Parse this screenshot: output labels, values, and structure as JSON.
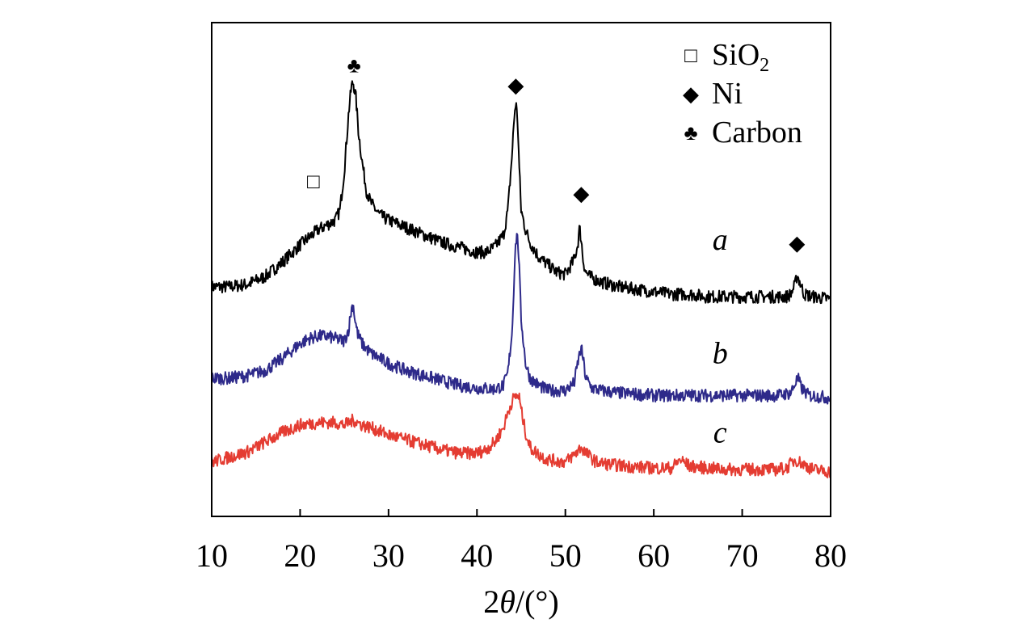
{
  "chart_data": {
    "type": "line",
    "title": "",
    "xlabel": "2θ/(°)",
    "xlabel_parts": {
      "number": "2",
      "theta": "θ",
      "unit": "/(°)"
    },
    "ylabel": "",
    "xlim": [
      10,
      80
    ],
    "ylim": [
      0,
      100
    ],
    "xticks": [
      10,
      20,
      30,
      40,
      50,
      60,
      70,
      80
    ],
    "grid": false,
    "legend_position": "top-right",
    "legend": [
      {
        "name": "SiO2",
        "label_main": "SiO",
        "label_sub": "2",
        "symbol": "□",
        "symbol_name": "open-square-icon"
      },
      {
        "name": "Ni",
        "label_main": "Ni",
        "label_sub": "",
        "symbol": "◆",
        "symbol_name": "filled-diamond-icon"
      },
      {
        "name": "Carbon",
        "label_main": "Carbon",
        "label_sub": "",
        "symbol": "♣",
        "symbol_name": "club-icon"
      }
    ],
    "series": [
      {
        "name": "a",
        "label": "a",
        "color": "#000000",
        "label_x": 67.5,
        "label_y": 54,
        "x": [
          10,
          12,
          14,
          16,
          18,
          20,
          21,
          22,
          23,
          24,
          24.5,
          25,
          25.5,
          25.8,
          26,
          26.3,
          26.6,
          27,
          27.5,
          28,
          29,
          30,
          32,
          34,
          36,
          38,
          40,
          41,
          42,
          43,
          43.5,
          44,
          44.2,
          44.4,
          44.6,
          44.8,
          45,
          45.5,
          46,
          47,
          48,
          49,
          50,
          51,
          51.4,
          51.6,
          51.8,
          52,
          52.3,
          52.8,
          54,
          56,
          58,
          60,
          62,
          64,
          66,
          68,
          70,
          72,
          74,
          75,
          75.5,
          76,
          76.2,
          76.5,
          77,
          78,
          80
        ],
        "y": [
          46.5,
          46.5,
          47,
          48.5,
          51.5,
          55,
          56.5,
          58,
          59,
          60,
          62,
          70,
          82,
          87,
          88,
          85,
          78,
          72,
          66,
          63.5,
          61,
          60,
          58.5,
          57,
          55.5,
          54.5,
          53.5,
          53.5,
          54.5,
          57,
          62,
          74,
          80.5,
          84,
          80,
          70,
          62,
          58,
          55.5,
          52.5,
          51,
          49.5,
          49,
          52,
          55,
          58.5,
          56,
          52,
          49.5,
          48.5,
          47.5,
          46.5,
          46,
          45.5,
          45,
          45,
          44.5,
          44.5,
          44.5,
          44.5,
          44.5,
          44.5,
          45,
          47,
          49,
          47.5,
          45,
          44.5,
          44
        ]
      },
      {
        "name": "b",
        "label": "b",
        "color": "#2e2a8a",
        "label_x": 67.5,
        "label_y": 31,
        "x": [
          10,
          12,
          14,
          16,
          18,
          19,
          20,
          21,
          22,
          23,
          24,
          25,
          25.5,
          25.8,
          26,
          26.2,
          26.5,
          27,
          28,
          30,
          32,
          34,
          36,
          38,
          40,
          42,
          43,
          43.5,
          44,
          44.3,
          44.5,
          44.7,
          45,
          45.5,
          46,
          47,
          48,
          50,
          51,
          51.5,
          51.8,
          52,
          52.3,
          53,
          54,
          56,
          60,
          64,
          68,
          72,
          74,
          75.5,
          76,
          76.3,
          76.7,
          77.5,
          80
        ],
        "y": [
          28,
          28,
          28.5,
          29.5,
          32,
          33.5,
          35,
          36,
          36.5,
          36.5,
          36,
          35.5,
          38,
          42,
          43,
          40,
          37,
          35,
          33,
          31,
          29.5,
          28.5,
          27.5,
          26.5,
          26,
          25.8,
          26.5,
          29,
          38,
          53,
          57.5,
          54,
          40,
          31,
          28,
          26.5,
          25.5,
          25.5,
          27,
          32,
          34,
          32,
          28,
          26,
          25.5,
          25,
          24.5,
          24.5,
          24.5,
          24.5,
          24.5,
          25,
          27,
          28,
          26,
          24.5,
          24
        ]
      },
      {
        "name": "c",
        "label": "c",
        "color": "#e43c32",
        "label_x": 67.5,
        "label_y": 15,
        "x": [
          10,
          12,
          14,
          16,
          18,
          20,
          22,
          24,
          25,
          26,
          27,
          28,
          30,
          32,
          34,
          36,
          38,
          40,
          41,
          42,
          43,
          43.5,
          44,
          44.5,
          44.8,
          45,
          45.5,
          46,
          47,
          48,
          50,
          51,
          51.8,
          52.5,
          53.5,
          55,
          58,
          60,
          62,
          63,
          64,
          66,
          68,
          70,
          72,
          74,
          75,
          76,
          77,
          78,
          80
        ],
        "y": [
          11,
          12,
          13,
          15,
          17,
          18.5,
          19,
          19,
          18.5,
          19.5,
          18.5,
          18,
          16.5,
          15.5,
          14.5,
          13.5,
          12.8,
          12.8,
          13.5,
          15,
          18,
          21,
          23.5,
          24.5,
          24,
          21.5,
          17,
          14,
          12.5,
          11.5,
          11,
          12.5,
          14,
          12.5,
          11,
          10.5,
          10,
          9.8,
          9.8,
          11.5,
          10.2,
          9.8,
          9.5,
          9.5,
          9.5,
          9.5,
          9.8,
          11.5,
          10.5,
          9.5,
          9
        ]
      }
    ],
    "annotations": [
      {
        "name": "carbon-peak-marker",
        "x": 26.1,
        "y_top": 88,
        "symbol": "♣",
        "target": "a"
      },
      {
        "name": "sio2-hump-marker",
        "x": 21.5,
        "y_top": 64.5,
        "symbol": "□",
        "target": "a"
      },
      {
        "name": "ni-peak-marker-44",
        "x": 44.4,
        "y_top": 84,
        "symbol": "◆",
        "target": "a"
      },
      {
        "name": "ni-peak-marker-52",
        "x": 51.8,
        "y_top": 62,
        "symbol": "◆",
        "target": "a"
      },
      {
        "name": "ni-peak-marker-76",
        "x": 76.2,
        "y_top": 52,
        "symbol": "◆",
        "target": "a"
      }
    ]
  }
}
